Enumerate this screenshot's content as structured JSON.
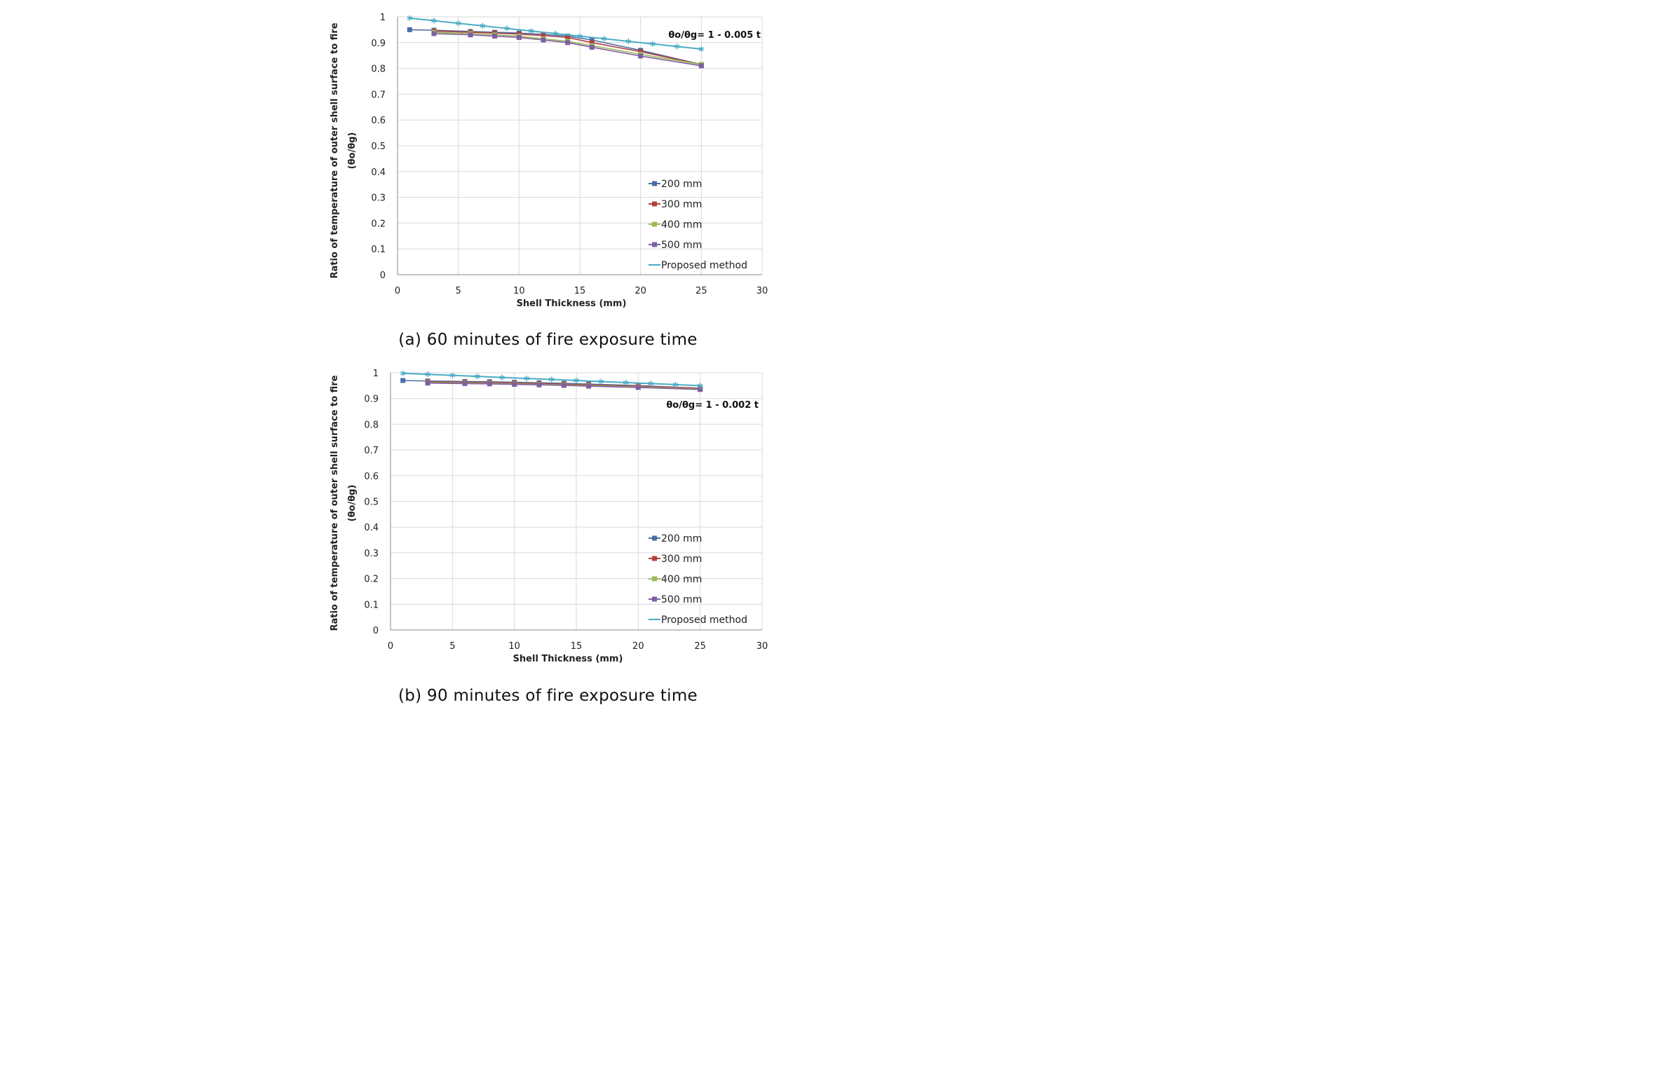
{
  "figure": {
    "captions": [
      "(a) 60 minutes of fire exposure time",
      "(b) 90 minutes of fire exposure time"
    ]
  },
  "colors": {
    "s200": "#4a6fa5",
    "s300": "#b0413e",
    "s400": "#9bbb59",
    "s500": "#7e5fa0",
    "proposed": "#4bacc6",
    "grid": "#d9d9d9",
    "axis": "#888888"
  },
  "chart_data": [
    {
      "type": "line",
      "title": "",
      "equation": "θo/θg= 1 - 0.005 t",
      "xlabel": "Shell Thickness (mm)",
      "ylabel": "Ratio of temperature of outer shell surface to fire",
      "ylabel2": "(θo/θg)",
      "xlim": [
        0,
        30
      ],
      "ylim": [
        0,
        1
      ],
      "xticks": [
        "0",
        "5",
        "10",
        "15",
        "20",
        "25",
        "30"
      ],
      "yticks": [
        "0",
        "0.1",
        "0.2",
        "0.3",
        "0.4",
        "0.5",
        "0.6",
        "0.7",
        "0.8",
        "0.9",
        "1"
      ],
      "grid": true,
      "legend_position": "bottom-right",
      "series": [
        {
          "name": "200 mm",
          "color_key": "s200",
          "marker": "square",
          "x": [
            1,
            3,
            6,
            8,
            10,
            12,
            14,
            16,
            20,
            25
          ],
          "y": [
            0.95,
            0.948,
            0.943,
            0.94,
            0.937,
            0.932,
            0.925,
            0.91,
            0.87,
            0.815
          ]
        },
        {
          "name": "300 mm",
          "color_key": "s300",
          "marker": "square",
          "x": [
            3,
            6,
            8,
            10,
            12,
            14,
            16,
            20,
            25
          ],
          "y": [
            0.945,
            0.94,
            0.937,
            0.933,
            0.927,
            0.92,
            0.9,
            0.865,
            0.815
          ]
        },
        {
          "name": "400 mm",
          "color_key": "s400",
          "marker": "square",
          "x": [
            3,
            6,
            8,
            10,
            12,
            14,
            16,
            20,
            25
          ],
          "y": [
            0.94,
            0.935,
            0.93,
            0.925,
            0.915,
            0.905,
            0.888,
            0.855,
            0.815
          ]
        },
        {
          "name": "500 mm",
          "color_key": "s500",
          "marker": "square",
          "x": [
            3,
            6,
            8,
            10,
            12,
            14,
            16,
            20,
            25
          ],
          "y": [
            0.935,
            0.93,
            0.925,
            0.92,
            0.91,
            0.9,
            0.882,
            0.848,
            0.81
          ]
        },
        {
          "name": "Proposed method",
          "color_key": "proposed",
          "marker": "star",
          "x": [
            1,
            3,
            5,
            7,
            9,
            11,
            13,
            15,
            17,
            19,
            21,
            23,
            25
          ],
          "y": [
            0.995,
            0.985,
            0.975,
            0.965,
            0.955,
            0.945,
            0.935,
            0.925,
            0.915,
            0.905,
            0.895,
            0.885,
            0.875
          ]
        }
      ]
    },
    {
      "type": "line",
      "title": "",
      "equation": "θo/θg= 1 - 0.002 t",
      "xlabel": "Shell Thickness (mm)",
      "ylabel": "Ratio of temperature of outer shell surface to fire",
      "ylabel2": "(θo/θg)",
      "xlim": [
        0,
        30
      ],
      "ylim": [
        0,
        1
      ],
      "xticks": [
        "0",
        "5",
        "10",
        "15",
        "20",
        "25",
        "30"
      ],
      "yticks": [
        "0",
        "0.1",
        "0.2",
        "0.3",
        "0.4",
        "0.5",
        "0.6",
        "0.7",
        "0.8",
        "0.9",
        "1"
      ],
      "grid": true,
      "legend_position": "bottom-right",
      "series": [
        {
          "name": "200 mm",
          "color_key": "s200",
          "marker": "square",
          "x": [
            1,
            3,
            6,
            8,
            10,
            12,
            14,
            16,
            20,
            25
          ],
          "y": [
            0.97,
            0.968,
            0.966,
            0.965,
            0.963,
            0.961,
            0.959,
            0.956,
            0.95,
            0.94
          ]
        },
        {
          "name": "300 mm",
          "color_key": "s300",
          "marker": "square",
          "x": [
            3,
            6,
            8,
            10,
            12,
            14,
            16,
            20,
            25
          ],
          "y": [
            0.965,
            0.963,
            0.962,
            0.96,
            0.958,
            0.956,
            0.953,
            0.948,
            0.94
          ]
        },
        {
          "name": "400 mm",
          "color_key": "s400",
          "marker": "square",
          "x": [
            3,
            6,
            8,
            10,
            12,
            14,
            16,
            20,
            25
          ],
          "y": [
            0.962,
            0.96,
            0.959,
            0.957,
            0.955,
            0.953,
            0.95,
            0.945,
            0.937
          ]
        },
        {
          "name": "500 mm",
          "color_key": "s500",
          "marker": "square",
          "x": [
            3,
            6,
            8,
            10,
            12,
            14,
            16,
            20,
            25
          ],
          "y": [
            0.96,
            0.958,
            0.957,
            0.955,
            0.953,
            0.951,
            0.948,
            0.943,
            0.935
          ]
        },
        {
          "name": "Proposed method",
          "color_key": "proposed",
          "marker": "star",
          "x": [
            1,
            3,
            5,
            7,
            9,
            11,
            13,
            15,
            17,
            19,
            21,
            23,
            25
          ],
          "y": [
            0.998,
            0.994,
            0.99,
            0.986,
            0.982,
            0.978,
            0.974,
            0.97,
            0.966,
            0.962,
            0.958,
            0.954,
            0.95
          ]
        }
      ]
    }
  ]
}
